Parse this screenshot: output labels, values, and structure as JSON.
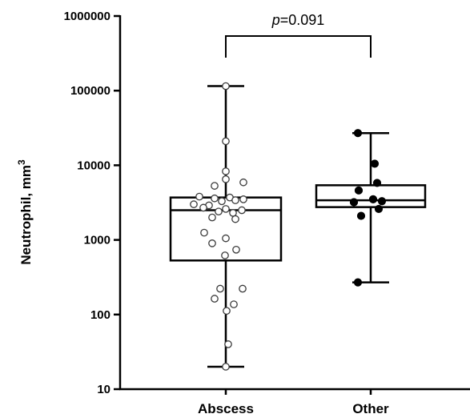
{
  "chart_data": {
    "type": "box",
    "ylabel": "Neutrophil, mm",
    "ylabel_superscript": "3",
    "yscale": "log",
    "ylim": [
      10,
      1000000
    ],
    "yticks": [
      {
        "value": 10,
        "label": "10"
      },
      {
        "value": 100,
        "label": "100"
      },
      {
        "value": 1000,
        "label": "1000"
      },
      {
        "value": 10000,
        "label": "10000"
      },
      {
        "value": 100000,
        "label": "100000"
      },
      {
        "value": 1000000,
        "label": "1000000"
      }
    ],
    "categories": [
      "Abscess",
      "Other"
    ],
    "groups": [
      {
        "category": "Abscess",
        "marker": "open-circle",
        "min": 20,
        "q1": 530,
        "median": 2500,
        "q3": 3700,
        "max": 115000,
        "points": [
          115000,
          21000,
          8300,
          6500,
          5300,
          5900,
          3800,
          3600,
          3700,
          3500,
          3300,
          3400,
          3000,
          2900,
          2700,
          2600,
          2500,
          2400,
          2300,
          2000,
          1900,
          1250,
          1050,
          900,
          740,
          620,
          222,
          222,
          163,
          137,
          112,
          40,
          20
        ]
      },
      {
        "category": "Other",
        "marker": "filled-circle",
        "min": 270,
        "q1": 2750,
        "median": 3400,
        "q3": 5400,
        "max": 27000,
        "points": [
          27000,
          10500,
          5800,
          4600,
          3500,
          3300,
          3200,
          2600,
          2100,
          270
        ]
      }
    ],
    "annotation": {
      "p_letter": "p",
      "p_value": "=0.091",
      "between": [
        "Abscess",
        "Other"
      ]
    },
    "grid": false,
    "legend": "none"
  }
}
